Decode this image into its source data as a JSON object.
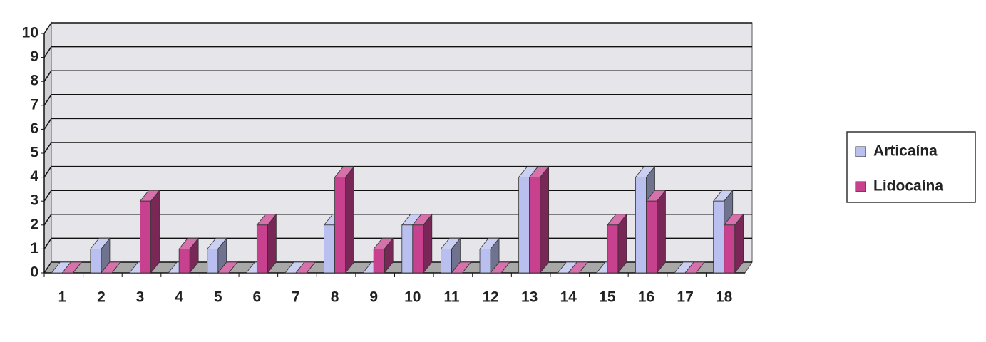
{
  "chart_data": {
    "type": "bar3d",
    "categories": [
      "1",
      "2",
      "3",
      "4",
      "5",
      "6",
      "7",
      "8",
      "9",
      "10",
      "11",
      "12",
      "13",
      "14",
      "15",
      "16",
      "17",
      "18"
    ],
    "series": [
      {
        "name": "Articaína",
        "color": "#b9c0ef",
        "values": [
          0,
          1,
          0,
          0,
          1,
          0,
          0,
          2,
          0,
          2,
          1,
          1,
          4,
          0,
          0,
          4,
          0,
          3
        ]
      },
      {
        "name": "Lidocaína",
        "color": "#c8418f",
        "values": [
          0,
          0,
          3,
          1,
          0,
          2,
          0,
          4,
          1,
          2,
          0,
          0,
          4,
          0,
          2,
          3,
          0,
          2
        ]
      }
    ],
    "ylim": [
      0,
      10
    ],
    "yticks": [
      0,
      1,
      2,
      3,
      4,
      5,
      6,
      7,
      8,
      9,
      10
    ],
    "grid": true,
    "legend": "right"
  }
}
